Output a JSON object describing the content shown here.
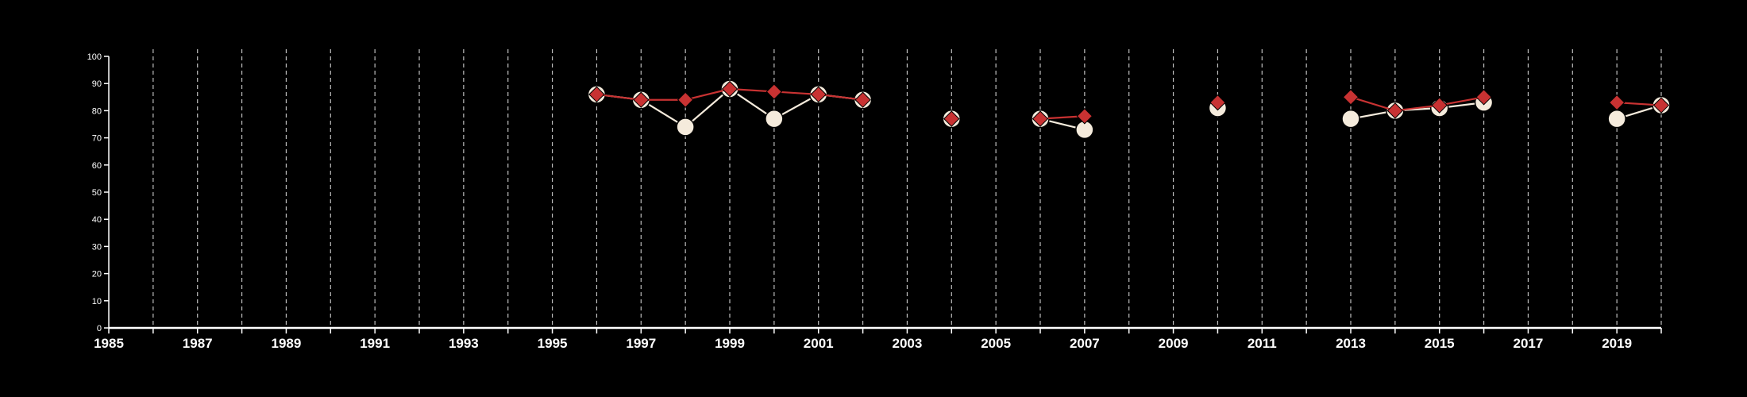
{
  "chart_data": {
    "type": "line",
    "title": "",
    "xlabel": "",
    "ylabel": "",
    "xlim": [
      1985,
      2020
    ],
    "ylim": [
      0,
      100
    ],
    "yticks": [
      0,
      10,
      20,
      30,
      40,
      50,
      60,
      70,
      80,
      90,
      100
    ],
    "xticks": [
      1985,
      1987,
      1989,
      1991,
      1993,
      1995,
      1997,
      1999,
      2001,
      2003,
      2005,
      2007,
      2009,
      2011,
      2013,
      2015,
      2017,
      2019
    ],
    "grid": "vertical dashed lines at every year",
    "legend": "none",
    "series": [
      {
        "color": "#f5ebdc",
        "marker": "circle",
        "points": [
          [
            1996,
            86
          ],
          [
            1997,
            84
          ],
          [
            1998,
            74
          ],
          [
            1999,
            88
          ],
          [
            2000,
            77
          ],
          [
            2001,
            86
          ],
          [
            2002,
            84
          ],
          [
            2004,
            77
          ],
          [
            2006,
            77
          ],
          [
            2007,
            73
          ],
          [
            2010,
            81
          ],
          [
            2013,
            77
          ],
          [
            2014,
            80
          ],
          [
            2015,
            81
          ],
          [
            2016,
            83
          ],
          [
            2019,
            77
          ],
          [
            2020,
            82
          ]
        ]
      },
      {
        "color": "#c83232",
        "marker": "diamond",
        "points": [
          [
            1996,
            86
          ],
          [
            1997,
            84
          ],
          [
            1998,
            84
          ],
          [
            1999,
            88
          ],
          [
            2000,
            87
          ],
          [
            2001,
            86
          ],
          [
            2002,
            84
          ],
          [
            2004,
            77
          ],
          [
            2006,
            77
          ],
          [
            2007,
            78
          ],
          [
            2010,
            83
          ],
          [
            2013,
            85
          ],
          [
            2014,
            80
          ],
          [
            2015,
            82
          ],
          [
            2016,
            85
          ],
          [
            2019,
            83
          ],
          [
            2020,
            82
          ]
        ]
      }
    ]
  }
}
